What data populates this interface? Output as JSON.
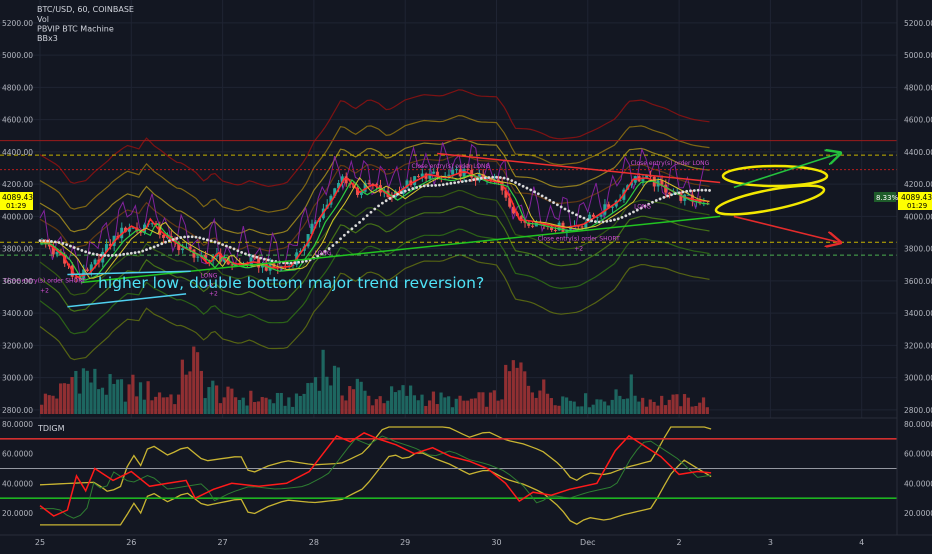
{
  "legend": {
    "symbol": "BTC/USD, 60, COINBASE",
    "items": [
      "Vol",
      "PBVIP BTC Machine",
      "BBx3"
    ]
  },
  "price_axis": {
    "ticks": [
      "5200.00",
      "5000.00",
      "4800.00",
      "4600.00",
      "4400.00",
      "4200.00",
      "4000.00",
      "3800.00",
      "3600.00",
      "3400.00",
      "3200.00",
      "3000.00",
      "2800.00"
    ],
    "price_badge": "4089.43",
    "countdown_badge": "01:29",
    "pct_badge": "8.33%",
    "right_price_badge": "4089.43",
    "right_countdown_badge": "01:29"
  },
  "indicator": {
    "name": "TDIGM",
    "ticks": [
      "80.0000",
      "60.0000",
      "40.0000",
      "20.0000"
    ],
    "upper_line": 70,
    "mid_line": 50,
    "lower_line": 30,
    "colors": {
      "upper": "#d32f2f",
      "lower": "#1db321",
      "rsi": "#ff1a1a",
      "band": "#c8b432"
    }
  },
  "time_axis": {
    "labels": [
      "25",
      "26",
      "27",
      "28",
      "29",
      "30",
      "Dec",
      "2",
      "3",
      "4"
    ]
  },
  "annotations": {
    "main_text": "higher low, double bottom major trend reversion?",
    "signals": [
      {
        "text": "Close entry(s) order LONG",
        "num": ""
      },
      {
        "text": "Close entry(s) order LONG",
        "num": ""
      },
      {
        "text": "Close entry(s) order SHORT",
        "num": "+2"
      },
      {
        "text": "Close entry(s) order SHORT",
        "num": "+2"
      },
      {
        "text": "LONG",
        "num": ""
      },
      {
        "text": "LONG",
        "num": ""
      },
      {
        "text": "LONG",
        "num": "+2"
      },
      {
        "text": "+2",
        "num": ""
      }
    ]
  },
  "chart_data": {
    "type": "candlestick",
    "symbol": "BTC/USD",
    "interval": "60",
    "exchange": "COINBASE",
    "ylim": [
      2750,
      5280
    ],
    "x_days": [
      "25",
      "26",
      "27",
      "28",
      "29",
      "30",
      "Dec",
      "2",
      "3",
      "4"
    ],
    "price_path": [
      [
        0,
        3850
      ],
      [
        0.2,
        3760
      ],
      [
        0.35,
        3620
      ],
      [
        0.5,
        3650
      ],
      [
        0.65,
        3760
      ],
      [
        0.8,
        3870
      ],
      [
        0.95,
        3940
      ],
      [
        1.1,
        3900
      ],
      [
        1.15,
        3990
      ],
      [
        1.25,
        3920
      ],
      [
        1.4,
        3850
      ],
      [
        1.55,
        3800
      ],
      [
        1.7,
        3760
      ],
      [
        1.8,
        3700
      ],
      [
        1.9,
        3780
      ],
      [
        2.0,
        3720
      ],
      [
        2.15,
        3700
      ],
      [
        2.3,
        3720
      ],
      [
        2.5,
        3680
      ],
      [
        2.7,
        3690
      ],
      [
        2.9,
        3850
      ],
      [
        3.0,
        3980
      ],
      [
        3.15,
        4100
      ],
      [
        3.3,
        4250
      ],
      [
        3.45,
        4150
      ],
      [
        3.6,
        4200
      ],
      [
        3.8,
        4120
      ],
      [
        4.0,
        4200
      ],
      [
        4.2,
        4260
      ],
      [
        4.4,
        4240
      ],
      [
        4.6,
        4280
      ],
      [
        4.8,
        4230
      ],
      [
        5.0,
        4210
      ],
      [
        5.1,
        4120
      ],
      [
        5.2,
        3980
      ],
      [
        5.35,
        3970
      ],
      [
        5.5,
        3950
      ],
      [
        5.7,
        3930
      ],
      [
        5.9,
        3950
      ],
      [
        6.1,
        4020
      ],
      [
        6.3,
        4100
      ],
      [
        6.45,
        4230
      ],
      [
        6.6,
        4240
      ],
      [
        6.8,
        4180
      ],
      [
        7.0,
        4120
      ],
      [
        7.15,
        4100
      ],
      [
        7.35,
        4090
      ]
    ],
    "volume_path": [
      [
        0,
        120
      ],
      [
        0.25,
        200
      ],
      [
        0.4,
        380
      ],
      [
        0.6,
        260
      ],
      [
        0.8,
        200
      ],
      [
        1.0,
        220
      ],
      [
        1.2,
        180
      ],
      [
        1.5,
        140
      ],
      [
        1.6,
        520
      ],
      [
        1.8,
        240
      ],
      [
        2.0,
        150
      ],
      [
        2.5,
        120
      ],
      [
        2.8,
        110
      ],
      [
        3.0,
        320
      ],
      [
        3.05,
        460
      ],
      [
        3.3,
        200
      ],
      [
        3.45,
        250
      ],
      [
        3.6,
        120
      ],
      [
        4.0,
        180
      ],
      [
        4.2,
        140
      ],
      [
        4.6,
        100
      ],
      [
        5.0,
        140
      ],
      [
        5.15,
        360
      ],
      [
        5.3,
        320
      ],
      [
        5.5,
        200
      ],
      [
        5.7,
        140
      ],
      [
        6.0,
        110
      ],
      [
        6.3,
        140
      ],
      [
        6.45,
        220
      ],
      [
        6.6,
        120
      ],
      [
        7.0,
        110
      ],
      [
        7.35,
        100
      ]
    ],
    "rsi_path": [
      [
        0,
        25
      ],
      [
        0.15,
        18
      ],
      [
        0.3,
        22
      ],
      [
        0.4,
        45
      ],
      [
        0.5,
        35
      ],
      [
        0.6,
        50
      ],
      [
        0.8,
        42
      ],
      [
        1.0,
        48
      ],
      [
        1.2,
        38
      ],
      [
        1.4,
        40
      ],
      [
        1.6,
        42
      ],
      [
        1.7,
        30
      ],
      [
        1.9,
        36
      ],
      [
        2.1,
        40
      ],
      [
        2.4,
        38
      ],
      [
        2.7,
        40
      ],
      [
        2.95,
        48
      ],
      [
        3.1,
        60
      ],
      [
        3.25,
        72
      ],
      [
        3.4,
        68
      ],
      [
        3.55,
        74
      ],
      [
        3.7,
        70
      ],
      [
        3.9,
        66
      ],
      [
        4.1,
        60
      ],
      [
        4.3,
        64
      ],
      [
        4.5,
        58
      ],
      [
        4.7,
        55
      ],
      [
        4.9,
        50
      ],
      [
        5.1,
        40
      ],
      [
        5.25,
        28
      ],
      [
        5.4,
        34
      ],
      [
        5.6,
        32
      ],
      [
        5.8,
        36
      ],
      [
        6.1,
        40
      ],
      [
        6.3,
        62
      ],
      [
        6.45,
        72
      ],
      [
        6.6,
        66
      ],
      [
        6.8,
        58
      ],
      [
        7.0,
        46
      ],
      [
        7.2,
        48
      ],
      [
        7.35,
        47
      ]
    ],
    "horizontal_levels": [
      {
        "price": 4470,
        "color": "#9c1b1b",
        "style": "solid"
      },
      {
        "price": 4380,
        "color": "#c8b400",
        "style": "dashed"
      },
      {
        "price": 4290,
        "color": "#b71c1c",
        "style": "dotted"
      },
      {
        "price": 3840,
        "color": "#c8b400",
        "style": "dashed"
      },
      {
        "price": 3760,
        "color": "#4caf50",
        "style": "dashed"
      }
    ],
    "trendlines": [
      {
        "from": [
          0.45,
          3590
        ],
        "to": [
          7.45,
          4000
        ],
        "color": "#21c421"
      },
      {
        "from": [
          4.35,
          4390
        ],
        "to": [
          7.45,
          4210
        ],
        "color": "#ef3030"
      },
      {
        "from": [
          0.3,
          3440
        ],
        "to": [
          1.6,
          3520
        ],
        "color": "#4fd0f0"
      },
      {
        "from": [
          0.3,
          3640
        ],
        "to": [
          1.65,
          3660
        ],
        "color": "#4fd0f0"
      }
    ],
    "arrows": [
      {
        "from": [
          7.6,
          4180
        ],
        "to": [
          8.75,
          4390
        ],
        "color": "#24c33e"
      },
      {
        "from": [
          7.6,
          4000
        ],
        "to": [
          8.75,
          3840
        ],
        "color": "#e42b2b"
      }
    ]
  }
}
